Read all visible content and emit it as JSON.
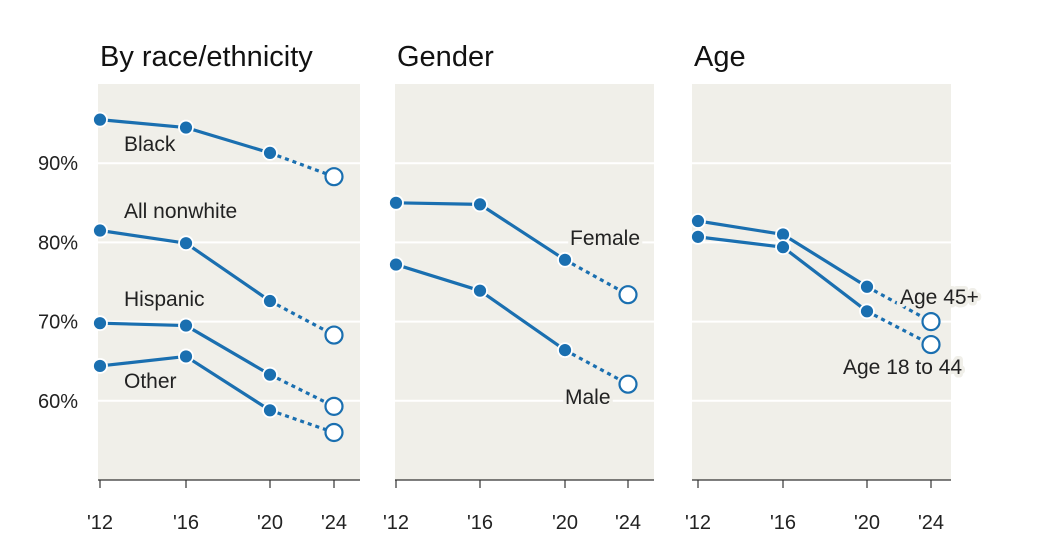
{
  "chart_data": [
    {
      "type": "line",
      "title": "By race/ethnicity",
      "x": [
        "'12",
        "'16",
        "'20",
        "'24"
      ],
      "ylim": [
        50,
        100
      ],
      "y_ticks": [
        {
          "value": 90,
          "label": "90%"
        },
        {
          "value": 80,
          "label": "80%"
        },
        {
          "value": 70,
          "label": "70%"
        },
        {
          "value": 60,
          "label": "60%"
        }
      ],
      "series": [
        {
          "name": "Black",
          "values": [
            95.5,
            94.5,
            91.3,
            88.3
          ]
        },
        {
          "name": "All nonwhite",
          "values": [
            81.5,
            79.9,
            72.6,
            68.3
          ]
        },
        {
          "name": "Hispanic",
          "values": [
            69.8,
            69.5,
            63.3,
            59.3
          ]
        },
        {
          "name": "Other",
          "values": [
            64.4,
            65.6,
            58.8,
            56.0
          ]
        }
      ],
      "projected_segment": "last",
      "color": "#1a6fb0",
      "background": "#f0efe9",
      "grid": true
    },
    {
      "type": "line",
      "title": "Gender",
      "x": [
        "'12",
        "'16",
        "'20",
        "'24"
      ],
      "ylim": [
        50,
        100
      ],
      "series": [
        {
          "name": "Female",
          "values": [
            85.0,
            84.8,
            77.8,
            73.4
          ]
        },
        {
          "name": "Male",
          "values": [
            77.2,
            73.9,
            66.4,
            62.1
          ]
        }
      ],
      "projected_segment": "last",
      "color": "#1a6fb0",
      "background": "#f0efe9",
      "grid": true
    },
    {
      "type": "line",
      "title": "Age",
      "x": [
        "'12",
        "'16",
        "'20",
        "'24"
      ],
      "ylim": [
        50,
        100
      ],
      "series": [
        {
          "name": "Age 45+",
          "values": [
            82.7,
            81.0,
            74.4,
            70.0
          ]
        },
        {
          "name": "Age 18 to 44",
          "values": [
            80.7,
            79.4,
            71.3,
            67.1
          ]
        }
      ],
      "projected_segment": "last",
      "color": "#1a6fb0",
      "background": "#f0efe9",
      "grid": true
    }
  ]
}
